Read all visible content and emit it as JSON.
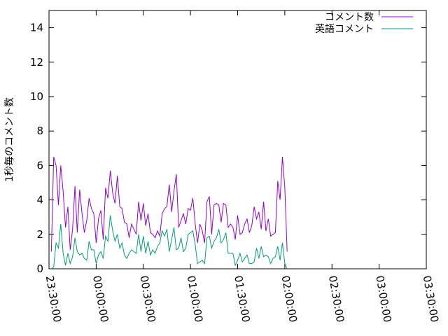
{
  "chart_data": {
    "type": "line",
    "title": "",
    "xlabel": "",
    "ylabel": "1秒毎のコメント数",
    "xlim": [
      "23:30:00",
      "03:30:00"
    ],
    "ylim": [
      0,
      15
    ],
    "yticks": [
      0,
      2,
      4,
      6,
      8,
      10,
      12,
      14
    ],
    "xticks": [
      "23:30:00",
      "00:00:00",
      "00:30:00",
      "01:00:00",
      "01:30:00",
      "02:00:00",
      "02:30:00",
      "03:00:00",
      "03:30:00"
    ],
    "grid": false,
    "legend_position": "top-right",
    "x_interval_seconds": 90,
    "series": [
      {
        "name": "コメント数",
        "color": "#9400d3",
        "values": [
          1.0,
          6.5,
          6.0,
          3.7,
          6.0,
          4.5,
          2.4,
          3.6,
          1.1,
          2.3,
          4.8,
          2.1,
          4.6,
          3.2,
          2.1,
          2.8,
          4.1,
          3.5,
          3.2,
          1.5,
          2.9,
          3.4,
          1.7,
          4.7,
          4.1,
          5.7,
          4.4,
          3.8,
          5.4,
          3.6,
          3.5,
          2.7,
          2.6,
          1.8,
          2.6,
          2.3,
          2.0,
          3.9,
          2.8,
          3.8,
          2.5,
          3.2,
          2.1,
          2.0,
          1.8,
          2.2,
          1.9,
          3.2,
          3.5,
          3.6,
          4.9,
          3.3,
          4.5,
          5.5,
          2.4,
          2.8,
          3.2,
          2.6,
          3.5,
          3.4,
          4.1,
          2.6,
          1.5,
          2.6,
          2.2,
          1.5,
          3.9,
          4.2,
          2.0,
          3.7,
          3.8,
          3.7,
          2.7,
          3.8,
          3.7,
          2.4,
          2.6,
          2.4,
          1.7,
          3.1,
          2.0,
          2.1,
          2.6,
          2.9,
          2.1,
          2.5,
          3.6,
          2.9,
          3.3,
          2.3,
          3.9,
          2.2,
          2.9,
          1.9,
          2.0,
          2.1,
          5.1,
          4.0,
          6.5,
          4.7,
          1.0
        ]
      },
      {
        "name": "英語コメント",
        "color": "#009e73",
        "values": [
          0.0,
          0.1,
          1.5,
          1.2,
          2.6,
          0.9,
          0.2,
          0.9,
          0.3,
          0.7,
          1.8,
          1.0,
          0.8,
          0.9,
          0.6,
          0.5,
          1.6,
          1.1,
          1.1,
          0.3,
          0.8,
          1.0,
          0.6,
          1.9,
          1.6,
          3.1,
          2.2,
          1.6,
          2.0,
          1.2,
          1.5,
          0.8,
          0.6,
          0.9,
          1.1,
          1.0,
          0.9,
          2.0,
          1.0,
          1.9,
          0.9,
          1.6,
          0.8,
          1.1,
          0.9,
          1.3,
          1.5,
          2.2,
          1.9,
          2.3,
          1.0,
          1.7,
          2.4,
          1.1,
          1.2,
          1.8,
          1.0,
          1.2,
          2.0,
          2.1,
          2.2,
          1.4,
          0.3,
          0.4,
          0.5,
          0.3,
          1.8,
          1.9,
          1.2,
          1.6,
          1.8,
          2.3,
          1.5,
          1.7,
          2.1,
          0.9,
          0.9,
          0.9,
          0.2,
          0.5,
          0.9,
          0.4,
          0.6,
          0.8,
          0.3,
          0.3,
          0.4,
          1.2,
          0.6,
          1.3,
          0.7,
          0.8,
          0.7,
          0.3,
          0.6,
          0.7,
          1.3,
          0.5,
          1.5,
          0.3,
          0.0
        ]
      }
    ]
  }
}
